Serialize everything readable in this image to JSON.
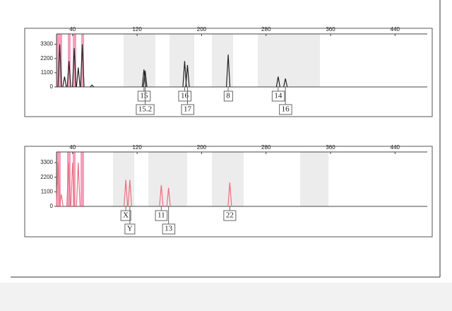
{
  "chart_data": [
    {
      "type": "line",
      "xlim": [
        20,
        480
      ],
      "xticks": [
        40,
        120,
        200,
        280,
        360,
        440
      ],
      "ylim": [
        0,
        4100
      ],
      "yticks": [
        0,
        1100,
        2200,
        3300
      ],
      "color": "#222222",
      "x": [
        24,
        30,
        35.5,
        42,
        47,
        52,
        64,
        128.5,
        130,
        179,
        182.5,
        233,
        295,
        304
      ],
      "values": [
        3300,
        800,
        2000,
        3000,
        1500,
        3300,
        150,
        1350,
        1250,
        2000,
        1700,
        2500,
        800,
        650
      ],
      "peak_labels": [
        null,
        null,
        null,
        null,
        null,
        null,
        null,
        "15",
        "15.2",
        "16",
        "17",
        "8",
        "14",
        "16"
      ]
    },
    {
      "type": "line",
      "xlim": [
        20,
        480
      ],
      "xticks": [
        40,
        120,
        200,
        280,
        360,
        440
      ],
      "ylim": [
        0,
        4100
      ],
      "yticks": [
        0,
        1100,
        2200,
        3300
      ],
      "color": "#e8707f",
      "x": [
        22,
        26,
        35,
        40,
        47,
        106,
        111,
        150,
        159,
        235
      ],
      "values": [
        3300,
        900,
        3300,
        3300,
        3300,
        2000,
        2000,
        1600,
        1400,
        1800
      ],
      "peak_labels": [
        null,
        null,
        null,
        null,
        null,
        "X",
        "Y",
        "11",
        "13",
        "22"
      ]
    }
  ]
}
